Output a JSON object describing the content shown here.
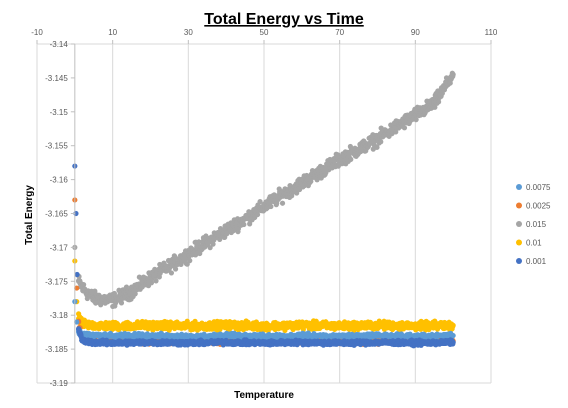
{
  "chart_data": {
    "type": "scatter",
    "title": "Total Energy vs Time",
    "xlabel": "Temperature",
    "ylabel": "Total Energy",
    "xlim": [
      -10,
      110
    ],
    "ylim": [
      -3.19,
      -3.14
    ],
    "x_ticks": [
      -10,
      10,
      30,
      50,
      70,
      90,
      110
    ],
    "x_tick_labels": [
      "-10",
      "10",
      "30",
      "50",
      "70",
      "90",
      "110"
    ],
    "y_ticks": [
      -3.14,
      -3.145,
      -3.15,
      -3.155,
      -3.16,
      -3.165,
      -3.17,
      -3.175,
      -3.18,
      -3.185,
      -3.19
    ],
    "y_tick_labels": [
      "-3.14",
      "-3.145",
      "-3.15",
      "-3.155",
      "-3.16",
      "-3.165",
      "-3.17",
      "-3.175",
      "-3.18",
      "-3.185",
      "-3.19"
    ],
    "grid": "vertical",
    "legend_position": "right",
    "series": [
      {
        "name": "0.0075",
        "color": "#5b9bd5",
        "x": [
          0,
          0.5,
          1,
          2,
          5,
          10,
          20,
          30,
          40,
          50,
          60,
          70,
          80,
          90,
          100
        ],
        "y": [
          -3.178,
          -3.181,
          -3.1825,
          -3.1828,
          -3.183,
          -3.1831,
          -3.183,
          -3.1832,
          -3.183,
          -3.1831,
          -3.183,
          -3.1831,
          -3.183,
          -3.1831,
          -3.183
        ]
      },
      {
        "name": "0.0025",
        "color": "#ed7d31",
        "x": [
          0,
          0.5,
          1,
          2,
          5,
          10,
          20,
          30,
          40,
          50,
          60,
          70,
          80,
          90,
          100
        ],
        "y": [
          -3.163,
          -3.176,
          -3.181,
          -3.1835,
          -3.1838,
          -3.1839,
          -3.1838,
          -3.1839,
          -3.1838,
          -3.1839,
          -3.1838,
          -3.1839,
          -3.1838,
          -3.1839,
          -3.1838
        ]
      },
      {
        "name": "0.015",
        "color": "#a5a5a5",
        "x": [
          0,
          1,
          2,
          5,
          10,
          15,
          20,
          25,
          30,
          35,
          40,
          45,
          50,
          55,
          60,
          65,
          70,
          75,
          80,
          85,
          90,
          95,
          100
        ],
        "y": [
          -3.17,
          -3.175,
          -3.176,
          -3.1775,
          -3.1778,
          -3.1765,
          -3.1745,
          -3.1728,
          -3.171,
          -3.1692,
          -3.1675,
          -3.1658,
          -3.164,
          -3.1622,
          -3.1605,
          -3.1588,
          -3.157,
          -3.1555,
          -3.154,
          -3.1522,
          -3.1505,
          -3.1488,
          -3.1445
        ]
      },
      {
        "name": "0.01",
        "color": "#ffc000",
        "x": [
          0,
          0.5,
          1,
          2,
          5,
          10,
          20,
          30,
          40,
          50,
          60,
          70,
          80,
          90,
          100
        ],
        "y": [
          -3.172,
          -3.178,
          -3.1805,
          -3.1813,
          -3.1815,
          -3.1816,
          -3.1815,
          -3.1816,
          -3.1815,
          -3.1816,
          -3.1815,
          -3.1816,
          -3.1815,
          -3.1816,
          -3.1815
        ]
      },
      {
        "name": "0.001",
        "color": "#4472c4",
        "x": [
          0,
          0.3,
          0.6,
          1,
          2,
          5,
          10,
          20,
          30,
          40,
          50,
          60,
          70,
          80,
          90,
          100
        ],
        "y": [
          -3.158,
          -3.165,
          -3.174,
          -3.182,
          -3.1838,
          -3.184,
          -3.1841,
          -3.184,
          -3.1841,
          -3.184,
          -3.1841,
          -3.184,
          -3.1841,
          -3.184,
          -3.1841,
          -3.184
        ]
      }
    ],
    "legend_order": [
      "0.0075",
      "0.0025",
      "0.015",
      "0.01",
      "0.001"
    ]
  }
}
